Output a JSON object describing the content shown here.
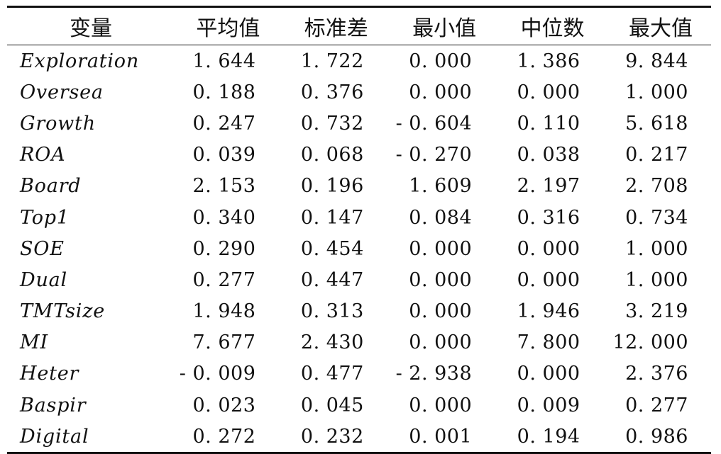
{
  "table": {
    "headers": [
      "变量",
      "平均值",
      "标准差",
      "最小值",
      "中位数",
      "最大值"
    ],
    "rows": [
      {
        "var": "Exploration",
        "mean": "1. 644",
        "sd": "1. 722",
        "min": "0. 000",
        "median": "1. 386",
        "max": "9. 844"
      },
      {
        "var": "Oversea",
        "mean": "0. 188",
        "sd": "0. 376",
        "min": "0. 000",
        "median": "0. 000",
        "max": "1. 000"
      },
      {
        "var": "Growth",
        "mean": "0. 247",
        "sd": "0. 732",
        "min": "- 0. 604",
        "median": "0. 110",
        "max": "5. 618"
      },
      {
        "var": "ROA",
        "mean": "0. 039",
        "sd": "0. 068",
        "min": "- 0. 270",
        "median": "0. 038",
        "max": "0. 217"
      },
      {
        "var": "Board",
        "mean": "2. 153",
        "sd": "0. 196",
        "min": "1. 609",
        "median": "2. 197",
        "max": "2. 708"
      },
      {
        "var": "Top1",
        "mean": "0. 340",
        "sd": "0. 147",
        "min": "0. 084",
        "median": "0. 316",
        "max": "0. 734"
      },
      {
        "var": "SOE",
        "mean": "0. 290",
        "sd": "0. 454",
        "min": "0. 000",
        "median": "0. 000",
        "max": "1. 000"
      },
      {
        "var": "Dual",
        "mean": "0. 277",
        "sd": "0. 447",
        "min": "0. 000",
        "median": "0. 000",
        "max": "1. 000"
      },
      {
        "var": "TMTsize",
        "mean": "1. 948",
        "sd": "0. 313",
        "min": "0. 000",
        "median": "1. 946",
        "max": "3. 219"
      },
      {
        "var": "MI",
        "mean": "7. 677",
        "sd": "2. 430",
        "min": "0. 000",
        "median": "7. 800",
        "max": "12. 000"
      },
      {
        "var": "Heter",
        "mean": "- 0. 009",
        "sd": "0. 477",
        "min": "- 2. 938",
        "median": "0. 000",
        "max": "2. 376"
      },
      {
        "var": "Baspir",
        "mean": "0. 023",
        "sd": "0. 045",
        "min": "0. 000",
        "median": "0. 009",
        "max": "0. 277"
      },
      {
        "var": "Digital",
        "mean": "0. 272",
        "sd": "0. 232",
        "min": "0. 001",
        "median": "0. 194",
        "max": "0. 986"
      }
    ]
  }
}
